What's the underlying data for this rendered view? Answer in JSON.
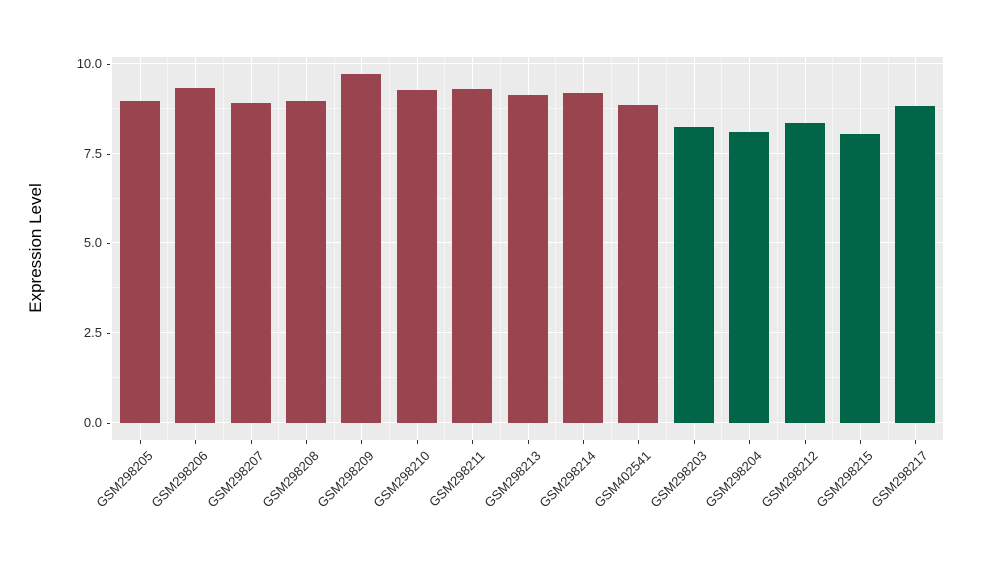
{
  "chart_data": {
    "type": "bar",
    "title": "",
    "xlabel": "",
    "ylabel": "Expression Level",
    "ylim": [
      0,
      10.2
    ],
    "grid": "on",
    "legend": "none",
    "ytick_labels": [
      "0.0",
      "2.5",
      "5.0",
      "7.5",
      "10.0"
    ],
    "yticks_major": [
      0.0,
      2.5,
      5.0,
      7.5,
      10.0
    ],
    "yticks_minor": [
      1.25,
      3.75,
      6.25,
      8.75
    ],
    "categories": [
      "GSM298205",
      "GSM298206",
      "GSM298207",
      "GSM298208",
      "GSM298209",
      "GSM298210",
      "GSM298211",
      "GSM298213",
      "GSM298214",
      "GSM402541",
      "GSM298203",
      "GSM298204",
      "GSM298212",
      "GSM298215",
      "GSM298217"
    ],
    "values": [
      8.98,
      9.33,
      8.92,
      8.98,
      9.72,
      9.28,
      9.31,
      9.14,
      9.19,
      8.86,
      8.25,
      8.1,
      8.35,
      8.05,
      8.82
    ],
    "bar_colors": [
      "#9A4450",
      "#9A4450",
      "#9A4450",
      "#9A4450",
      "#9A4450",
      "#9A4450",
      "#9A4450",
      "#9A4450",
      "#9A4450",
      "#9A4450",
      "#016647",
      "#016647",
      "#016647",
      "#016647",
      "#016647"
    ]
  },
  "colors": {
    "maroon_group": "#9A4450",
    "green_group": "#016647",
    "panel_background": "#EBEBEB",
    "grid_major": "#FFFFFF",
    "axis_tick": "#333333",
    "figure_background": "#FFFFFF"
  }
}
